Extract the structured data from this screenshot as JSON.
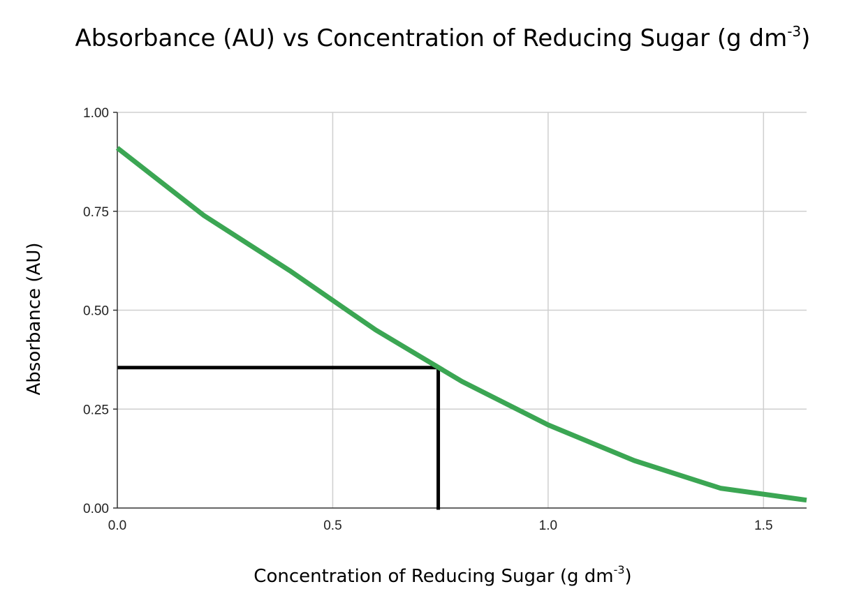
{
  "chart_data": {
    "type": "line",
    "title": "Absorbance (AU) vs Concentration of Reducing Sugar (g dm",
    "title_sup": "-3",
    "title_tail": ")",
    "xlabel": "Concentration of Reducing Sugar (g dm",
    "xlabel_sup": "-3",
    "xlabel_tail": ")",
    "ylabel": "Absorbance (AU)",
    "xlim": [
      0,
      1.6
    ],
    "ylim": [
      0,
      1.0
    ],
    "x_ticks": [
      0,
      0.5,
      1.0,
      1.5
    ],
    "x_tick_labels": [
      "0.0",
      "0.5",
      "1.0",
      "1.5"
    ],
    "y_ticks": [
      0,
      0.25,
      0.5,
      0.75,
      1.0
    ],
    "y_tick_labels": [
      "0.00",
      "0.25",
      "0.50",
      "0.75",
      "1.00"
    ],
    "grid": true,
    "series": [
      {
        "color": "#3ba653",
        "x": [
          0.0,
          0.2,
          0.4,
          0.6,
          0.8,
          1.0,
          1.2,
          1.4,
          1.6
        ],
        "y": [
          0.91,
          0.74,
          0.6,
          0.45,
          0.32,
          0.21,
          0.12,
          0.05,
          0.02
        ]
      }
    ],
    "reference_lines": [
      {
        "type": "horizontal",
        "y": 0.355,
        "x_from": 0.0,
        "x_to": 0.745,
        "color": "#000000"
      },
      {
        "type": "vertical",
        "x": 0.745,
        "y_from": 0.0,
        "y_to": 0.355,
        "color": "#000000"
      }
    ]
  }
}
